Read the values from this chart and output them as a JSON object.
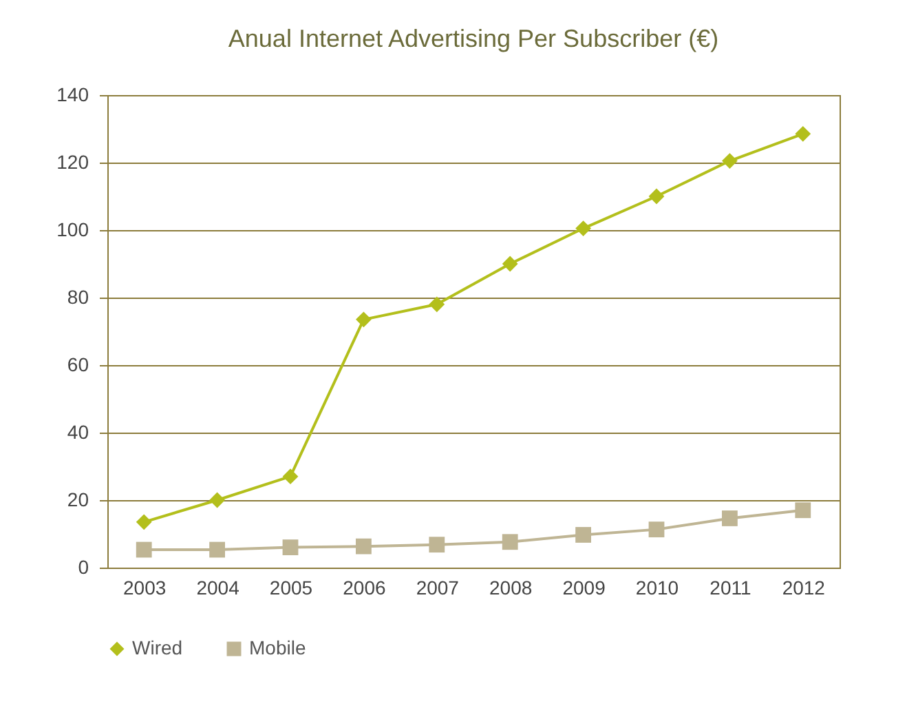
{
  "chart_data": {
    "type": "line",
    "title": "Anual Internet Advertising Per Subscriber (€)",
    "categories": [
      "2003",
      "2004",
      "2005",
      "2006",
      "2007",
      "2008",
      "2009",
      "2010",
      "2011",
      "2012"
    ],
    "series": [
      {
        "name": "Wired",
        "color": "#b3bf1c",
        "marker": "diamond",
        "values": [
          13.5,
          20,
          27,
          73.5,
          78,
          90,
          100.5,
          110,
          120.5,
          128.5
        ]
      },
      {
        "name": "Mobile",
        "color": "#bfb594",
        "marker": "square",
        "values": [
          5.3,
          5.3,
          6,
          6.3,
          6.8,
          7.6,
          9.7,
          11.3,
          14.6,
          17
        ]
      }
    ],
    "ylim": [
      0,
      140
    ],
    "yticks": [
      0,
      20,
      40,
      60,
      80,
      100,
      120,
      140
    ],
    "grid": "y",
    "legend": "bottom",
    "line_style": "solid"
  }
}
